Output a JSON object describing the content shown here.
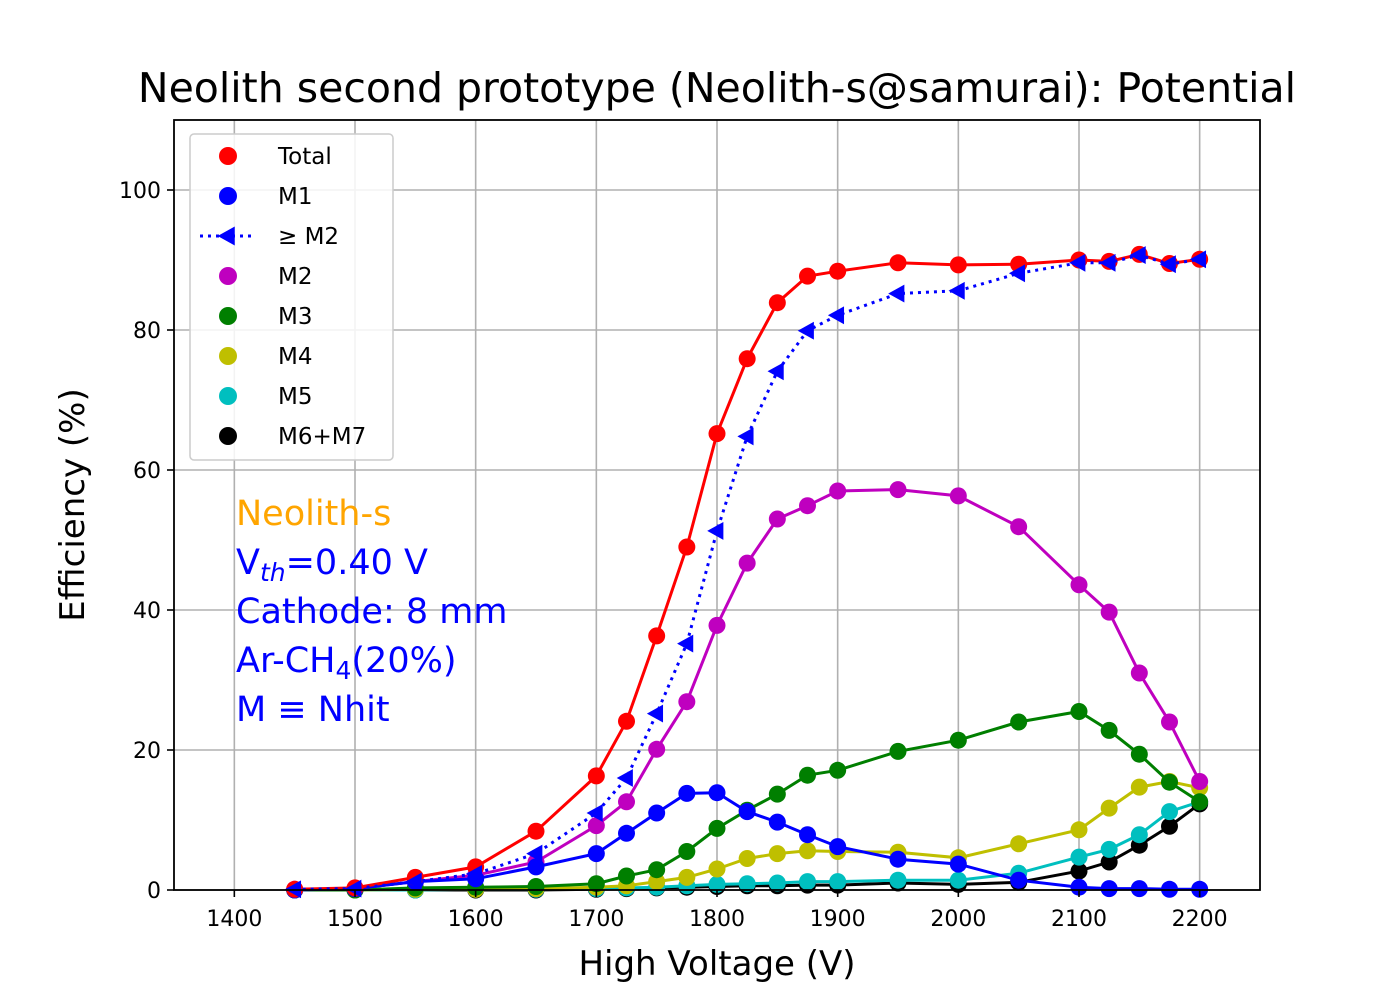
{
  "chart_data": {
    "type": "line",
    "title": "Neolith second prototype (Neolith-s@samurai): Potential",
    "xlabel": "High Voltage (V)",
    "ylabel": "Efficiency (%)",
    "xlim": [
      1350,
      2250
    ],
    "ylim": [
      0,
      110
    ],
    "xticks": [
      1400,
      1500,
      1600,
      1700,
      1800,
      1900,
      2000,
      2100,
      2200
    ],
    "yticks": [
      0,
      20,
      40,
      60,
      80,
      100
    ],
    "grid": true,
    "legend_position": "upper-left",
    "x": [
      1450,
      1500,
      1550,
      1600,
      1650,
      1700,
      1725,
      1750,
      1775,
      1800,
      1825,
      1850,
      1875,
      1900,
      1950,
      2000,
      2050,
      2100,
      2125,
      2150,
      2175,
      2200
    ],
    "series": [
      {
        "name": "Total",
        "color": "#ff0000",
        "marker": "circle",
        "linestyle": "solid",
        "values": [
          0.1,
          0.3,
          1.8,
          3.3,
          8.4,
          16.3,
          24.1,
          36.3,
          49.0,
          65.2,
          75.9,
          83.9,
          87.7,
          88.4,
          89.6,
          89.3,
          89.4,
          90.0,
          89.8,
          90.8,
          89.5,
          90.1
        ]
      },
      {
        "name": "M1",
        "color": "#0000ff",
        "marker": "circle",
        "linestyle": "solid",
        "values": [
          0.0,
          0.2,
          1.2,
          1.6,
          3.3,
          5.2,
          8.1,
          11.0,
          13.8,
          13.9,
          11.2,
          9.7,
          7.9,
          6.2,
          4.4,
          3.7,
          1.4,
          0.4,
          0.2,
          0.2,
          0.1,
          0.1
        ]
      },
      {
        "name": "≥ M2",
        "color": "#0000ff",
        "marker": "triangle-left",
        "linestyle": "dotted",
        "values": [
          0.1,
          0.2,
          1.2,
          2.3,
          5.2,
          11.0,
          16.0,
          25.2,
          35.2,
          51.3,
          64.8,
          74.1,
          79.9,
          82.1,
          85.2,
          85.6,
          88.1,
          89.6,
          89.6,
          90.7,
          89.4,
          90.1
        ]
      },
      {
        "name": "M2",
        "color": "#bf00bf",
        "marker": "circle",
        "linestyle": "solid",
        "values": [
          0.1,
          0.2,
          1.2,
          2.1,
          4.0,
          9.2,
          12.6,
          20.1,
          26.9,
          37.8,
          46.7,
          53.0,
          54.9,
          57.0,
          57.2,
          56.3,
          51.9,
          43.6,
          39.7,
          31.0,
          24.0,
          15.5
        ]
      },
      {
        "name": "M3",
        "color": "#007f00",
        "marker": "circle",
        "linestyle": "solid",
        "values": [
          0.0,
          0.0,
          0.3,
          0.4,
          0.5,
          0.9,
          2.0,
          2.9,
          5.5,
          8.8,
          11.4,
          13.7,
          16.4,
          17.1,
          19.8,
          21.4,
          24.0,
          25.5,
          22.8,
          19.4,
          15.4,
          12.6
        ]
      },
      {
        "name": "M4",
        "color": "#bfbf00",
        "marker": "circle",
        "linestyle": "solid",
        "values": [
          0.0,
          0.0,
          0.1,
          0.1,
          0.2,
          0.4,
          0.6,
          1.2,
          1.8,
          3.0,
          4.5,
          5.2,
          5.6,
          5.5,
          5.4,
          4.6,
          6.6,
          8.6,
          11.7,
          14.7,
          15.5,
          14.6
        ]
      },
      {
        "name": "M5",
        "color": "#00bfbf",
        "marker": "circle",
        "linestyle": "solid",
        "values": [
          0.0,
          0.0,
          0.0,
          0.1,
          0.1,
          0.2,
          0.3,
          0.4,
          0.6,
          0.8,
          0.9,
          1.0,
          1.2,
          1.2,
          1.4,
          1.4,
          2.4,
          4.7,
          5.8,
          7.9,
          11.2,
          12.6
        ]
      },
      {
        "name": "M6+M7",
        "color": "#000000",
        "marker": "circle",
        "linestyle": "solid",
        "values": [
          0.0,
          0.0,
          0.0,
          0.0,
          0.0,
          0.1,
          0.2,
          0.3,
          0.4,
          0.5,
          0.6,
          0.6,
          0.7,
          0.7,
          1.0,
          0.8,
          1.1,
          2.7,
          4.0,
          6.4,
          9.1,
          12.3
        ]
      }
    ],
    "annotation": {
      "title": "Neolith-s",
      "title_color": "#ffa500",
      "text_color": "#0000ff",
      "vth_prefix": "V",
      "vth_sub": "th",
      "vth_suffix": "=0.40 V",
      "cathode": "Cathode: 8 mm",
      "gas_prefix": "Ar-CH",
      "gas_sub": "4",
      "gas_suffix": "(20%)",
      "definition": "M ≡ Nhit"
    }
  }
}
